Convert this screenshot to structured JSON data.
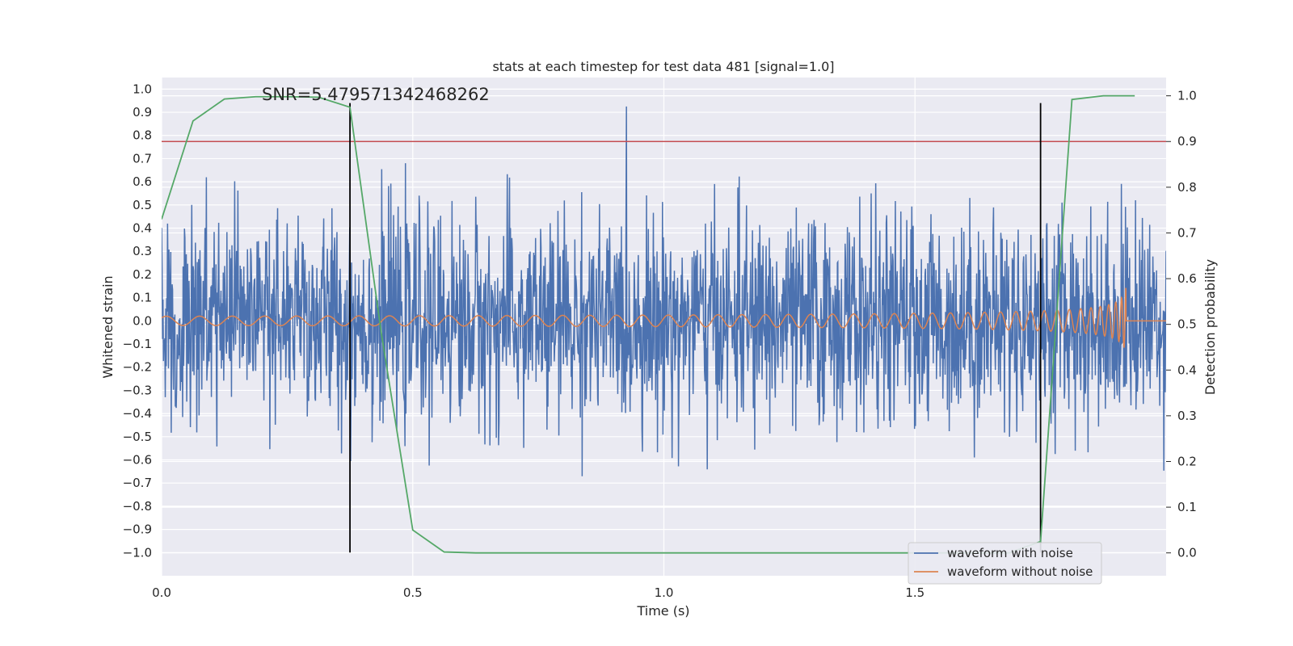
{
  "chart_data": {
    "type": "line",
    "title": "stats at each timestep for test data 481 [signal=1.0]",
    "annotation": "SNR=5.479571342468262",
    "xlabel": "Time (s)",
    "ylabel": "Whitened strain",
    "ylabel_right": "Detection probability",
    "xlim": [
      0.0,
      2.0
    ],
    "ylim": [
      -1.1,
      1.05
    ],
    "ylim_right": [
      -0.05,
      1.04
    ],
    "x_ticks": [
      0.0,
      0.5,
      1.0,
      1.5
    ],
    "x_tick_labels": [
      "0.0",
      "0.5",
      "1.0",
      "1.5"
    ],
    "y_ticks": [
      1.0,
      0.9,
      0.8,
      0.7,
      0.6,
      0.5,
      0.4,
      0.3,
      0.2,
      0.1,
      0.0,
      -0.1,
      -0.2,
      -0.3,
      -0.4,
      -0.5,
      -0.6,
      -0.7,
      -0.8,
      -0.9,
      -1.0
    ],
    "y_tick_labels": [
      "1.0",
      "0.9",
      "0.8",
      "0.7",
      "0.6",
      "0.5",
      "0.4",
      "0.3",
      "0.2",
      "0.1",
      "0.0",
      "−0.1",
      "−0.2",
      "−0.3",
      "−0.4",
      "−0.5",
      "−0.6",
      "−0.7",
      "−0.8",
      "−0.9",
      "−1.0"
    ],
    "y_ticks_right": [
      1.0,
      0.9,
      0.8,
      0.7,
      0.6,
      0.5,
      0.4,
      0.3,
      0.2,
      0.1,
      0.0
    ],
    "y_tick_labels_right": [
      "1.0",
      "0.9",
      "0.8",
      "0.7",
      "0.6",
      "0.5",
      "0.4",
      "0.3",
      "0.2",
      "0.1",
      "0.0"
    ],
    "grid": true,
    "legend_position": "bottom-right",
    "series": [
      {
        "name": "waveform with noise",
        "color": "#4c72b0",
        "axis": "left",
        "generated": true,
        "duration": 2.0,
        "amplitude_sd": 0.22,
        "amplitude_max": 0.99
      },
      {
        "name": "waveform without noise",
        "color": "#dd8452",
        "axis": "left",
        "generated": true,
        "t_merger": 1.92,
        "amplitude_start": 0.02,
        "amplitude_peak": 0.18,
        "f_start": 15,
        "f_end": 250
      },
      {
        "name": "",
        "color": "#55a868",
        "axis": "right",
        "x": [
          0.0,
          0.0625,
          0.125,
          0.1875,
          0.25,
          0.3125,
          0.375,
          0.4375,
          0.5,
          0.5625,
          0.625,
          0.6875,
          0.75,
          0.8125,
          0.875,
          0.9375,
          1.0,
          1.0625,
          1.125,
          1.1875,
          1.25,
          1.3125,
          1.375,
          1.4375,
          1.5,
          1.5625,
          1.625,
          1.6875,
          1.75,
          1.8125,
          1.875,
          1.9375
        ],
        "y": [
          0.73,
          0.945,
          0.993,
          0.998,
          0.998,
          0.997,
          0.975,
          0.48,
          0.05,
          0.002,
          0.0,
          0.0,
          0.0,
          0.0,
          0.0,
          0.0,
          0.0,
          0.0,
          0.0,
          0.0,
          0.0,
          0.0,
          0.0,
          0.0,
          0.0,
          0.0,
          0.0,
          0.0,
          0.025,
          0.992,
          1.0,
          1.0
        ]
      }
    ],
    "threshold_right": 0.9,
    "threshold_color": "#c44e52",
    "vertical_markers": [
      0.375,
      1.75
    ],
    "vertical_marker_range": [
      -1.0,
      0.94
    ],
    "marker_color": "#000000"
  }
}
